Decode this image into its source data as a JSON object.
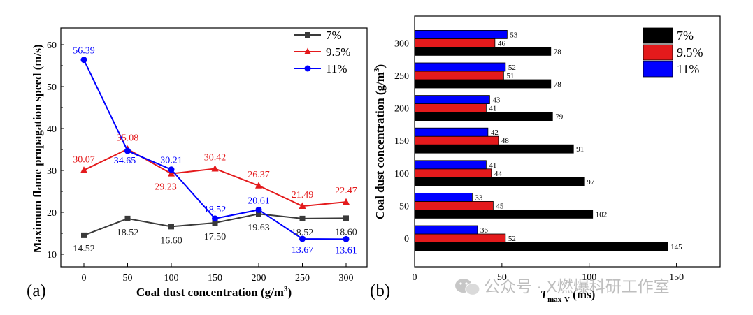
{
  "colors": {
    "s7": "#000000",
    "s95": "#e41a1c",
    "s11": "#0000ff",
    "line7": "#3a3a3a"
  },
  "panels": {
    "a": "(a)",
    "b": "(b)"
  },
  "watermark": "公众号 · X燃爆科研工作室",
  "chart_data": [
    {
      "type": "line",
      "xlabel": "Coal dust concentration (g/m",
      "xlabel_sup": "3",
      "xlabel_end": ")",
      "ylabel": "Maximum flame propagation speed (m/s)",
      "x": [
        0,
        50,
        100,
        150,
        200,
        250,
        300
      ],
      "xticks": [
        "0",
        "50",
        "100",
        "150",
        "200",
        "250",
        "300"
      ],
      "yticks": [
        "10",
        "20",
        "30",
        "40",
        "50",
        "60"
      ],
      "ylim": [
        7,
        64
      ],
      "series": [
        {
          "name": "7%",
          "values": [
            14.52,
            18.52,
            16.6,
            17.5,
            19.63,
            18.52,
            18.6
          ],
          "labels": [
            "14.52",
            "18.52",
            "16.60",
            "17.50",
            "19.63",
            "18.52",
            "18.60"
          ]
        },
        {
          "name": "9.5%",
          "values": [
            30.07,
            35.08,
            29.23,
            30.42,
            26.37,
            21.49,
            22.47
          ],
          "labels": [
            "30.07",
            "35.08",
            "29.23",
            "30.42",
            "26.37",
            "21.49",
            "22.47"
          ]
        },
        {
          "name": "11%",
          "values": [
            56.39,
            34.65,
            30.21,
            18.52,
            20.61,
            13.67,
            13.61
          ],
          "labels": [
            "56.39",
            "34.65",
            "30.21",
            "18.52",
            "20.61",
            "13.67",
            "13.61"
          ]
        }
      ],
      "legend": [
        "7%",
        "9.5%",
        "11%"
      ],
      "legend_position": "top-right"
    },
    {
      "type": "bar",
      "orientation": "horizontal",
      "categories": [
        "0",
        "50",
        "100",
        "150",
        "200",
        "250",
        "300"
      ],
      "xticks": [
        "0",
        "50",
        "100",
        "150"
      ],
      "xlim": [
        0,
        175
      ],
      "ylabel": "Coal dust concentration (g/m",
      "ylabel_sup": "3",
      "ylabel_end": ")",
      "xlabel_T": "T",
      "xlabel_sub": "max-V",
      "xlabel_unit": " (ms)",
      "series": [
        {
          "name": "7%",
          "values": [
            145,
            102,
            97,
            91,
            79,
            78,
            78
          ],
          "labels": [
            "145",
            "102",
            "97",
            "91",
            "79",
            "78",
            "78"
          ]
        },
        {
          "name": "9.5%",
          "values": [
            52,
            45,
            44,
            48,
            41,
            51,
            46
          ],
          "labels": [
            "52",
            "45",
            "44",
            "48",
            "41",
            "51",
            "46"
          ]
        },
        {
          "name": "11%",
          "values": [
            36,
            33,
            41,
            42,
            43,
            52,
            53
          ],
          "labels": [
            "36",
            "33",
            "41",
            "42",
            "43",
            "52",
            "53"
          ]
        }
      ],
      "legend": [
        "7%",
        "9.5%",
        "11%"
      ],
      "legend_position": "top-right"
    }
  ]
}
